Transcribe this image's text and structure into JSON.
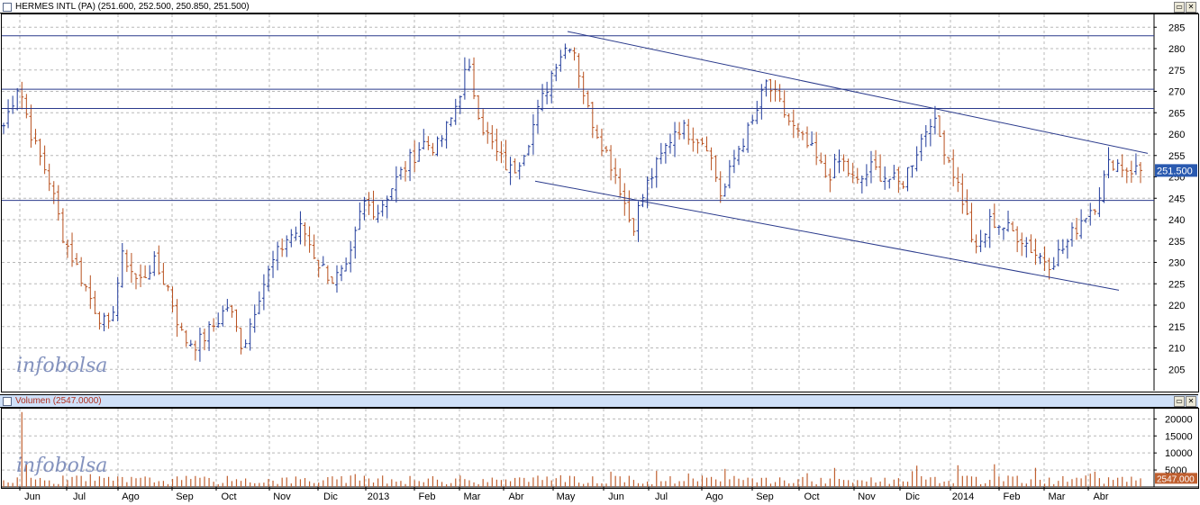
{
  "price_panel": {
    "title": "HERMES INTL (PA) (251.600, 252.500, 250.850, 251.500)",
    "last_price_label": "251.500",
    "y_ticks": [
      "285",
      "280",
      "275",
      "270",
      "265",
      "260",
      "255",
      "250",
      "245",
      "240",
      "235",
      "230",
      "225",
      "220",
      "215",
      "210",
      "205"
    ],
    "watermark": "infobolsa"
  },
  "volume_panel": {
    "title": "Volumen (2547.0000)",
    "y_ticks": [
      "20000",
      "15000",
      "10000",
      "5000"
    ],
    "last_volume_label": "2547.000",
    "watermark": "infobolsa"
  },
  "x_axis": {
    "labels": [
      "Jun",
      "Jul",
      "Ago",
      "Sep",
      "Oct",
      "Nov",
      "Dic",
      "2013",
      "Feb",
      "Mar",
      "Abr",
      "May",
      "Jun",
      "Jul",
      "Ago",
      "Sep",
      "Oct",
      "Nov",
      "Dic",
      "2014",
      "Feb",
      "Mar",
      "Abr"
    ]
  },
  "window_buttons": {
    "restore": "▭",
    "close": "✕"
  },
  "colors": {
    "up_bar": "#1f3a9a",
    "down_bar": "#b8501e",
    "line": "#2a3a8c",
    "volume_bar": "#c06030",
    "last_label_bg": "#2a5ab0"
  },
  "chart_data": [
    {
      "type": "ohlc",
      "title": "HERMES INTL (PA)",
      "ylim": [
        200,
        288
      ],
      "x_labels": [
        "Jun",
        "Jul",
        "Ago",
        "Sep",
        "Oct",
        "Nov",
        "Dic",
        "2013",
        "Feb",
        "Mar",
        "Abr",
        "May",
        "Jun",
        "Jul",
        "Ago",
        "Sep",
        "Oct",
        "Nov",
        "Dic",
        "2014",
        "Feb",
        "Mar",
        "Abr"
      ],
      "last": {
        "open": 251.6,
        "high": 252.5,
        "low": 250.85,
        "close": 251.5
      },
      "close_series": [
        [
          "Jun",
          262
        ],
        [
          "Jun",
          272
        ],
        [
          "Jun",
          258
        ],
        [
          "Jul",
          250
        ],
        [
          "Jul",
          236
        ],
        [
          "Jul",
          228
        ],
        [
          "Ago",
          220
        ],
        [
          "Ago",
          214
        ],
        [
          "Ago",
          232
        ],
        [
          "Ago",
          225
        ],
        [
          "Sep",
          230
        ],
        [
          "Sep",
          224
        ],
        [
          "Sep",
          212
        ],
        [
          "Oct",
          211
        ],
        [
          "Oct",
          215
        ],
        [
          "Oct",
          220
        ],
        [
          "Oct",
          210
        ],
        [
          "Nov",
          222
        ],
        [
          "Nov",
          230
        ],
        [
          "Nov",
          236
        ],
        [
          "Dic",
          238
        ],
        [
          "Dic",
          230
        ],
        [
          "Dic",
          226
        ],
        [
          "2013",
          228
        ],
        [
          "2013",
          244
        ],
        [
          "Feb",
          242
        ],
        [
          "Feb",
          248
        ],
        [
          "Feb",
          253
        ],
        [
          "Mar",
          258
        ],
        [
          "Mar",
          257
        ],
        [
          "Mar",
          264
        ],
        [
          "Abr",
          276
        ],
        [
          "Abr",
          262
        ],
        [
          "Abr",
          255
        ],
        [
          "Abr",
          251
        ],
        [
          "May",
          258
        ],
        [
          "May",
          268
        ],
        [
          "May",
          278
        ],
        [
          "May",
          282
        ],
        [
          "Jun",
          266
        ],
        [
          "Jun",
          258
        ],
        [
          "Jun",
          250
        ],
        [
          "Jul",
          238
        ],
        [
          "Jul",
          248
        ],
        [
          "Jul",
          255
        ],
        [
          "Ago",
          262
        ],
        [
          "Ago",
          260
        ],
        [
          "Ago",
          258
        ],
        [
          "Ago",
          245
        ],
        [
          "Sep",
          256
        ],
        [
          "Sep",
          262
        ],
        [
          "Sep",
          272
        ],
        [
          "Oct",
          266
        ],
        [
          "Oct",
          260
        ],
        [
          "Oct",
          256
        ],
        [
          "Oct",
          250
        ],
        [
          "Nov",
          254
        ],
        [
          "Nov",
          248
        ],
        [
          "Nov",
          252
        ],
        [
          "Dic",
          250
        ],
        [
          "Dic",
          248
        ],
        [
          "Dic",
          256
        ],
        [
          "2014",
          264
        ],
        [
          "2014",
          256
        ],
        [
          "2014",
          246
        ],
        [
          "Feb",
          232
        ],
        [
          "Feb",
          240
        ],
        [
          "Feb",
          238
        ],
        [
          "Mar",
          236
        ],
        [
          "Mar",
          232
        ],
        [
          "Mar",
          230
        ],
        [
          "Abr",
          234
        ],
        [
          "Abr",
          240
        ],
        [
          "Abr",
          244
        ],
        [
          "Abr",
          254
        ],
        [
          "Abr",
          252
        ],
        [
          "Abr",
          251.5
        ]
      ],
      "horizontal_lines": [
        283,
        270.5,
        266,
        244.5
      ],
      "trendlines": [
        {
          "from": [
            "May",
            284
          ],
          "to": [
            "Abr",
            255.5
          ]
        },
        {
          "from": [
            "Abr",
            249
          ],
          "to": [
            "Abr",
            223.5
          ]
        }
      ]
    },
    {
      "type": "bar",
      "title": "Volumen",
      "ylim": [
        0,
        23000
      ],
      "last_value": 2547,
      "peak_value": 22000
    }
  ]
}
